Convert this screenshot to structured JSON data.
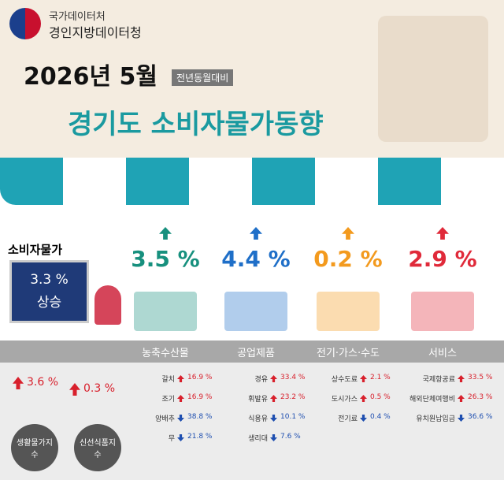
{
  "header": {
    "agency": "국가데이터처",
    "office": "경인지방데이터청",
    "date": "2026년 5월",
    "badge": "전년동월대비",
    "title": "경기도 소비자물가동향"
  },
  "cpi": {
    "label": "소비자물가",
    "value": "3.3 %",
    "status": "상승"
  },
  "categories": [
    {
      "name": "농축수산물",
      "change": "3.5 %",
      "items": [
        {
          "name": "갈치",
          "value": "16.9 %"
        },
        {
          "name": "조기",
          "value": "16.9 %"
        },
        {
          "name": "양배추",
          "value": "38.8 %"
        },
        {
          "name": "무",
          "value": "21.8 %"
        }
      ]
    },
    {
      "name": "공업제품",
      "change": "4.4 %",
      "items": [
        {
          "name": "경유",
          "value": "33.4 %"
        },
        {
          "name": "휘발유",
          "value": "23.2 %"
        },
        {
          "name": "식용유",
          "value": "10.1 %"
        },
        {
          "name": "생리대",
          "value": "7.6 %"
        }
      ]
    },
    {
      "name": "전기·가스·수도",
      "change": "0.2 %",
      "items": [
        {
          "name": "상수도료",
          "value": "2.1 %"
        },
        {
          "name": "도시가스",
          "value": "0.5 %"
        },
        {
          "name": "전기료",
          "value": "0.4 %"
        }
      ]
    },
    {
      "name": "서비스",
      "change": "2.9 %",
      "items": [
        {
          "name": "국제항공료",
          "value": "33.5 %"
        },
        {
          "name": "해외단체여행비",
          "value": "26.3 %"
        },
        {
          "name": "유치원납입금",
          "value": "36.6 %"
        }
      ]
    }
  ],
  "indices": [
    {
      "name": "생활물가지수",
      "change": "3.6 %"
    },
    {
      "name": "신선식품지수",
      "change": "0.3 %"
    }
  ]
}
